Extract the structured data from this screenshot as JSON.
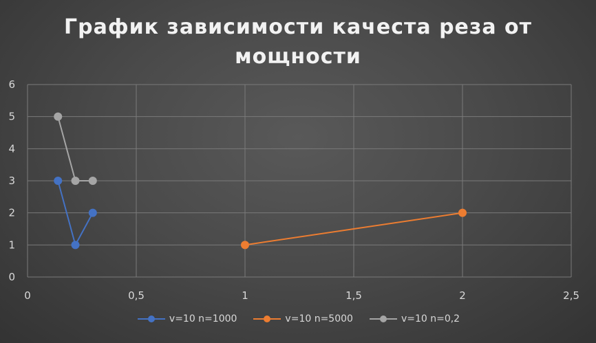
{
  "chart_data": {
    "type": "scatter",
    "title": "График  зависимости качеста реза от мощности",
    "xlabel": "",
    "ylabel": "",
    "xlim": [
      0,
      2.5
    ],
    "ylim": [
      0,
      6
    ],
    "x_ticks": [
      0,
      0.5,
      1,
      1.5,
      2,
      2.5
    ],
    "x_tick_labels": [
      "0",
      "0,5",
      "1",
      "1,5",
      "2",
      "2,5"
    ],
    "y_ticks": [
      0,
      1,
      2,
      3,
      4,
      5,
      6
    ],
    "y_tick_labels": [
      "0",
      "1",
      "2",
      "3",
      "4",
      "5",
      "6"
    ],
    "grid": "vertical and horizontal major gridlines",
    "legend_position": "bottom",
    "series": [
      {
        "name": "v=10 n=1000",
        "color": "#4472C4",
        "x": [
          0.14,
          0.22,
          0.3
        ],
        "y": [
          3,
          1,
          2
        ]
      },
      {
        "name": "v=10 n=5000",
        "color": "#ED7D31",
        "x": [
          1,
          2
        ],
        "y": [
          1,
          2
        ]
      },
      {
        "name": "v=10 n=0,2",
        "color": "#A5A5A5",
        "x": [
          0.14,
          0.22,
          0.3
        ],
        "y": [
          5,
          3,
          3
        ]
      }
    ]
  }
}
